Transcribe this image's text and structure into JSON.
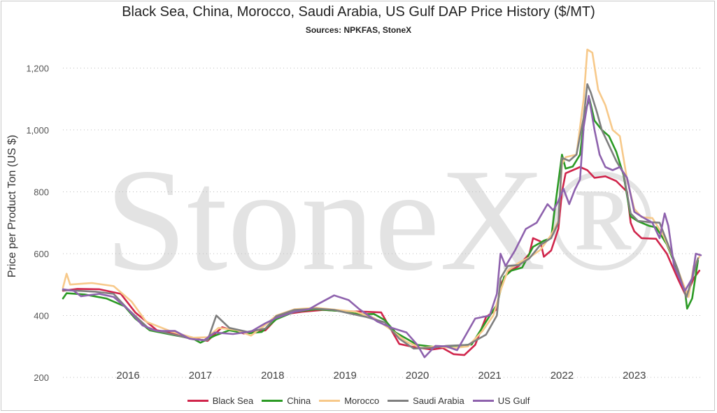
{
  "chart_data": {
    "type": "line",
    "title": "Black Sea, China, Morocco, Saudi Arabia, US Gulf DAP Price History ($/MT)",
    "subtitle": "Sources: NPKFAS, StoneX",
    "xlabel": "",
    "ylabel": "Price per Product Ton (US $)",
    "watermark": "StoneX®",
    "xlim": [
      2015.0,
      2023.85
    ],
    "ylim": [
      200,
      1280
    ],
    "yticks": [
      200,
      400,
      600,
      800,
      1000,
      1200
    ],
    "ytick_labels": [
      "200",
      "400",
      "600",
      "800",
      "1,000",
      "1,200"
    ],
    "xtick_labels": [
      "2016",
      "2017",
      "2018",
      "2019",
      "2020",
      "2021",
      "2022",
      "2023"
    ],
    "xticks": [
      2015.9,
      2016.9,
      2017.9,
      2018.9,
      2019.9,
      2020.9,
      2021.9,
      2022.9
    ],
    "grid": true,
    "legend_position": "bottom",
    "series": [
      {
        "name": "Black Sea",
        "color": "#d0254b",
        "points": [
          [
            2015.0,
            480
          ],
          [
            2015.2,
            486
          ],
          [
            2015.5,
            485
          ],
          [
            2015.8,
            470
          ],
          [
            2016.0,
            410
          ],
          [
            2016.3,
            352
          ],
          [
            2016.6,
            340
          ],
          [
            2016.9,
            322
          ],
          [
            2017.0,
            318
          ],
          [
            2017.2,
            362
          ],
          [
            2017.5,
            342
          ],
          [
            2017.8,
            352
          ],
          [
            2018.0,
            402
          ],
          [
            2018.3,
            412
          ],
          [
            2018.6,
            418
          ],
          [
            2018.9,
            414
          ],
          [
            2019.2,
            412
          ],
          [
            2019.4,
            410
          ],
          [
            2019.65,
            308
          ],
          [
            2019.85,
            298
          ],
          [
            2020.1,
            290
          ],
          [
            2020.25,
            295
          ],
          [
            2020.4,
            275
          ],
          [
            2020.55,
            272
          ],
          [
            2020.7,
            305
          ],
          [
            2020.85,
            395
          ],
          [
            2021.0,
            420
          ],
          [
            2021.05,
            500
          ],
          [
            2021.15,
            540
          ],
          [
            2021.3,
            560
          ],
          [
            2021.45,
            600
          ],
          [
            2021.5,
            650
          ],
          [
            2021.6,
            640
          ],
          [
            2021.65,
            590
          ],
          [
            2021.75,
            610
          ],
          [
            2021.85,
            680
          ],
          [
            2021.9,
            800
          ],
          [
            2021.95,
            860
          ],
          [
            2022.05,
            870
          ],
          [
            2022.15,
            880
          ],
          [
            2022.25,
            870
          ],
          [
            2022.35,
            845
          ],
          [
            2022.5,
            850
          ],
          [
            2022.65,
            835
          ],
          [
            2022.8,
            800
          ],
          [
            2022.85,
            700
          ],
          [
            2022.9,
            672
          ],
          [
            2023.0,
            650
          ],
          [
            2023.2,
            648
          ],
          [
            2023.35,
            600
          ],
          [
            2023.5,
            520
          ],
          [
            2023.6,
            470
          ],
          [
            2023.65,
            480
          ],
          [
            2023.72,
            520
          ],
          [
            2023.8,
            545
          ]
        ]
      },
      {
        "name": "China",
        "color": "#2b9a24",
        "points": [
          [
            2015.0,
            455
          ],
          [
            2015.05,
            472
          ],
          [
            2015.3,
            468
          ],
          [
            2015.6,
            455
          ],
          [
            2015.85,
            430
          ],
          [
            2016.0,
            390
          ],
          [
            2016.2,
            352
          ],
          [
            2016.5,
            338
          ],
          [
            2016.8,
            325
          ],
          [
            2016.9,
            312
          ],
          [
            2017.1,
            335
          ],
          [
            2017.3,
            352
          ],
          [
            2017.55,
            342
          ],
          [
            2017.75,
            347
          ],
          [
            2017.95,
            388
          ],
          [
            2018.2,
            412
          ],
          [
            2018.5,
            420
          ],
          [
            2018.8,
            415
          ],
          [
            2019.1,
            404
          ],
          [
            2019.3,
            405
          ],
          [
            2019.45,
            385
          ],
          [
            2019.6,
            345
          ],
          [
            2019.9,
            305
          ],
          [
            2020.15,
            298
          ],
          [
            2020.4,
            302
          ],
          [
            2020.65,
            306
          ],
          [
            2020.85,
            380
          ],
          [
            2021.0,
            435
          ],
          [
            2021.1,
            525
          ],
          [
            2021.2,
            545
          ],
          [
            2021.35,
            555
          ],
          [
            2021.5,
            622
          ],
          [
            2021.65,
            642
          ],
          [
            2021.75,
            650
          ],
          [
            2021.8,
            745
          ],
          [
            2021.9,
            920
          ],
          [
            2021.95,
            875
          ],
          [
            2022.05,
            882
          ],
          [
            2022.15,
            920
          ],
          [
            2022.22,
            1060
          ],
          [
            2022.28,
            1100
          ],
          [
            2022.35,
            1030
          ],
          [
            2022.45,
            1000
          ],
          [
            2022.55,
            980
          ],
          [
            2022.65,
            930
          ],
          [
            2022.75,
            855
          ],
          [
            2022.85,
            720
          ],
          [
            2022.95,
            705
          ],
          [
            2023.1,
            690
          ],
          [
            2023.2,
            685
          ],
          [
            2023.35,
            630
          ],
          [
            2023.5,
            545
          ],
          [
            2023.6,
            480
          ],
          [
            2023.63,
            422
          ],
          [
            2023.7,
            455
          ],
          [
            2023.78,
            578
          ]
        ]
      },
      {
        "name": "Morocco",
        "color": "#f7c98a",
        "points": [
          [
            2015.0,
            490
          ],
          [
            2015.05,
            535
          ],
          [
            2015.1,
            500
          ],
          [
            2015.4,
            505
          ],
          [
            2015.7,
            495
          ],
          [
            2015.95,
            445
          ],
          [
            2016.15,
            380
          ],
          [
            2016.5,
            348
          ],
          [
            2016.8,
            328
          ],
          [
            2017.0,
            330
          ],
          [
            2017.15,
            360
          ],
          [
            2017.4,
            353
          ],
          [
            2017.6,
            335
          ],
          [
            2017.8,
            370
          ],
          [
            2017.95,
            400
          ],
          [
            2018.2,
            420
          ],
          [
            2018.5,
            425
          ],
          [
            2018.8,
            418
          ],
          [
            2019.05,
            412
          ],
          [
            2019.3,
            392
          ],
          [
            2019.5,
            360
          ],
          [
            2019.75,
            315
          ],
          [
            2019.95,
            295
          ],
          [
            2020.15,
            300
          ],
          [
            2020.4,
            295
          ],
          [
            2020.6,
            300
          ],
          [
            2020.8,
            350
          ],
          [
            2020.95,
            400
          ],
          [
            2021.05,
            480
          ],
          [
            2021.15,
            545
          ],
          [
            2021.3,
            570
          ],
          [
            2021.45,
            588
          ],
          [
            2021.6,
            612
          ],
          [
            2021.75,
            660
          ],
          [
            2021.85,
            705
          ],
          [
            2021.9,
            890
          ],
          [
            2021.95,
            912
          ],
          [
            2022.1,
            920
          ],
          [
            2022.2,
            1100
          ],
          [
            2022.25,
            1260
          ],
          [
            2022.32,
            1250
          ],
          [
            2022.4,
            1130
          ],
          [
            2022.5,
            1080
          ],
          [
            2022.6,
            1000
          ],
          [
            2022.7,
            980
          ],
          [
            2022.8,
            840
          ],
          [
            2022.9,
            745
          ],
          [
            2023.0,
            718
          ],
          [
            2023.15,
            715
          ],
          [
            2023.3,
            660
          ],
          [
            2023.45,
            580
          ],
          [
            2023.58,
            500
          ],
          [
            2023.65,
            460
          ],
          [
            2023.72,
            560
          ],
          [
            2023.8,
            590
          ]
        ]
      },
      {
        "name": "Saudi Arabia",
        "color": "#7f7f7f",
        "points": [
          [
            2015.0,
            482
          ],
          [
            2015.2,
            480
          ],
          [
            2015.45,
            477
          ],
          [
            2015.7,
            470
          ],
          [
            2015.9,
            420
          ],
          [
            2016.2,
            355
          ],
          [
            2016.5,
            340
          ],
          [
            2016.8,
            323
          ],
          [
            2017.0,
            320
          ],
          [
            2017.12,
            400
          ],
          [
            2017.3,
            360
          ],
          [
            2017.55,
            347
          ],
          [
            2017.8,
            358
          ],
          [
            2017.95,
            398
          ],
          [
            2018.2,
            418
          ],
          [
            2018.5,
            422
          ],
          [
            2018.75,
            418
          ],
          [
            2019.0,
            405
          ],
          [
            2019.2,
            395
          ],
          [
            2019.45,
            378
          ],
          [
            2019.65,
            325
          ],
          [
            2019.85,
            293
          ],
          [
            2020.1,
            296
          ],
          [
            2020.3,
            302
          ],
          [
            2020.6,
            305
          ],
          [
            2020.85,
            338
          ],
          [
            2021.0,
            400
          ],
          [
            2021.05,
            520
          ],
          [
            2021.15,
            560
          ],
          [
            2021.3,
            563
          ],
          [
            2021.45,
            585
          ],
          [
            2021.6,
            628
          ],
          [
            2021.75,
            650
          ],
          [
            2021.85,
            700
          ],
          [
            2021.9,
            910
          ],
          [
            2022.0,
            900
          ],
          [
            2022.1,
            920
          ],
          [
            2022.2,
            1040
          ],
          [
            2022.25,
            1148
          ],
          [
            2022.3,
            1120
          ],
          [
            2022.38,
            1060
          ],
          [
            2022.45,
            1000
          ],
          [
            2022.55,
            950
          ],
          [
            2022.65,
            900
          ],
          [
            2022.75,
            860
          ],
          [
            2022.85,
            730
          ],
          [
            2022.95,
            706
          ],
          [
            2023.1,
            702
          ],
          [
            2023.25,
            700
          ],
          [
            2023.35,
            640
          ],
          [
            2023.5,
            550
          ],
          [
            2023.62,
            458
          ],
          [
            2023.7,
            520
          ],
          [
            2023.78,
            585
          ]
        ]
      },
      {
        "name": "US Gulf",
        "color": "#8e62ad",
        "points": [
          [
            2015.0,
            485
          ],
          [
            2015.15,
            480
          ],
          [
            2015.25,
            462
          ],
          [
            2015.5,
            470
          ],
          [
            2015.7,
            460
          ],
          [
            2015.9,
            420
          ],
          [
            2016.1,
            368
          ],
          [
            2016.3,
            350
          ],
          [
            2016.55,
            350
          ],
          [
            2016.75,
            325
          ],
          [
            2016.95,
            320
          ],
          [
            2017.1,
            345
          ],
          [
            2017.35,
            340
          ],
          [
            2017.6,
            348
          ],
          [
            2017.8,
            375
          ],
          [
            2017.95,
            392
          ],
          [
            2018.2,
            412
          ],
          [
            2018.4,
            420
          ],
          [
            2018.55,
            440
          ],
          [
            2018.75,
            465
          ],
          [
            2018.95,
            450
          ],
          [
            2019.1,
            420
          ],
          [
            2019.35,
            380
          ],
          [
            2019.55,
            360
          ],
          [
            2019.75,
            345
          ],
          [
            2019.9,
            305
          ],
          [
            2020.0,
            265
          ],
          [
            2020.15,
            302
          ],
          [
            2020.3,
            300
          ],
          [
            2020.45,
            288
          ],
          [
            2020.7,
            390
          ],
          [
            2020.9,
            400
          ],
          [
            2021.0,
            470
          ],
          [
            2021.05,
            600
          ],
          [
            2021.12,
            560
          ],
          [
            2021.25,
            610
          ],
          [
            2021.4,
            680
          ],
          [
            2021.55,
            700
          ],
          [
            2021.7,
            760
          ],
          [
            2021.78,
            740
          ],
          [
            2021.85,
            770
          ],
          [
            2021.92,
            810
          ],
          [
            2022.0,
            760
          ],
          [
            2022.08,
            808
          ],
          [
            2022.15,
            840
          ],
          [
            2022.2,
            1010
          ],
          [
            2022.27,
            1110
          ],
          [
            2022.35,
            1000
          ],
          [
            2022.42,
            920
          ],
          [
            2022.5,
            880
          ],
          [
            2022.6,
            870
          ],
          [
            2022.7,
            880
          ],
          [
            2022.8,
            845
          ],
          [
            2022.9,
            735
          ],
          [
            2023.0,
            720
          ],
          [
            2023.15,
            700
          ],
          [
            2023.25,
            650
          ],
          [
            2023.32,
            730
          ],
          [
            2023.37,
            690
          ],
          [
            2023.45,
            560
          ],
          [
            2023.6,
            480
          ],
          [
            2023.7,
            520
          ],
          [
            2023.75,
            600
          ],
          [
            2023.82,
            595
          ]
        ]
      }
    ]
  }
}
